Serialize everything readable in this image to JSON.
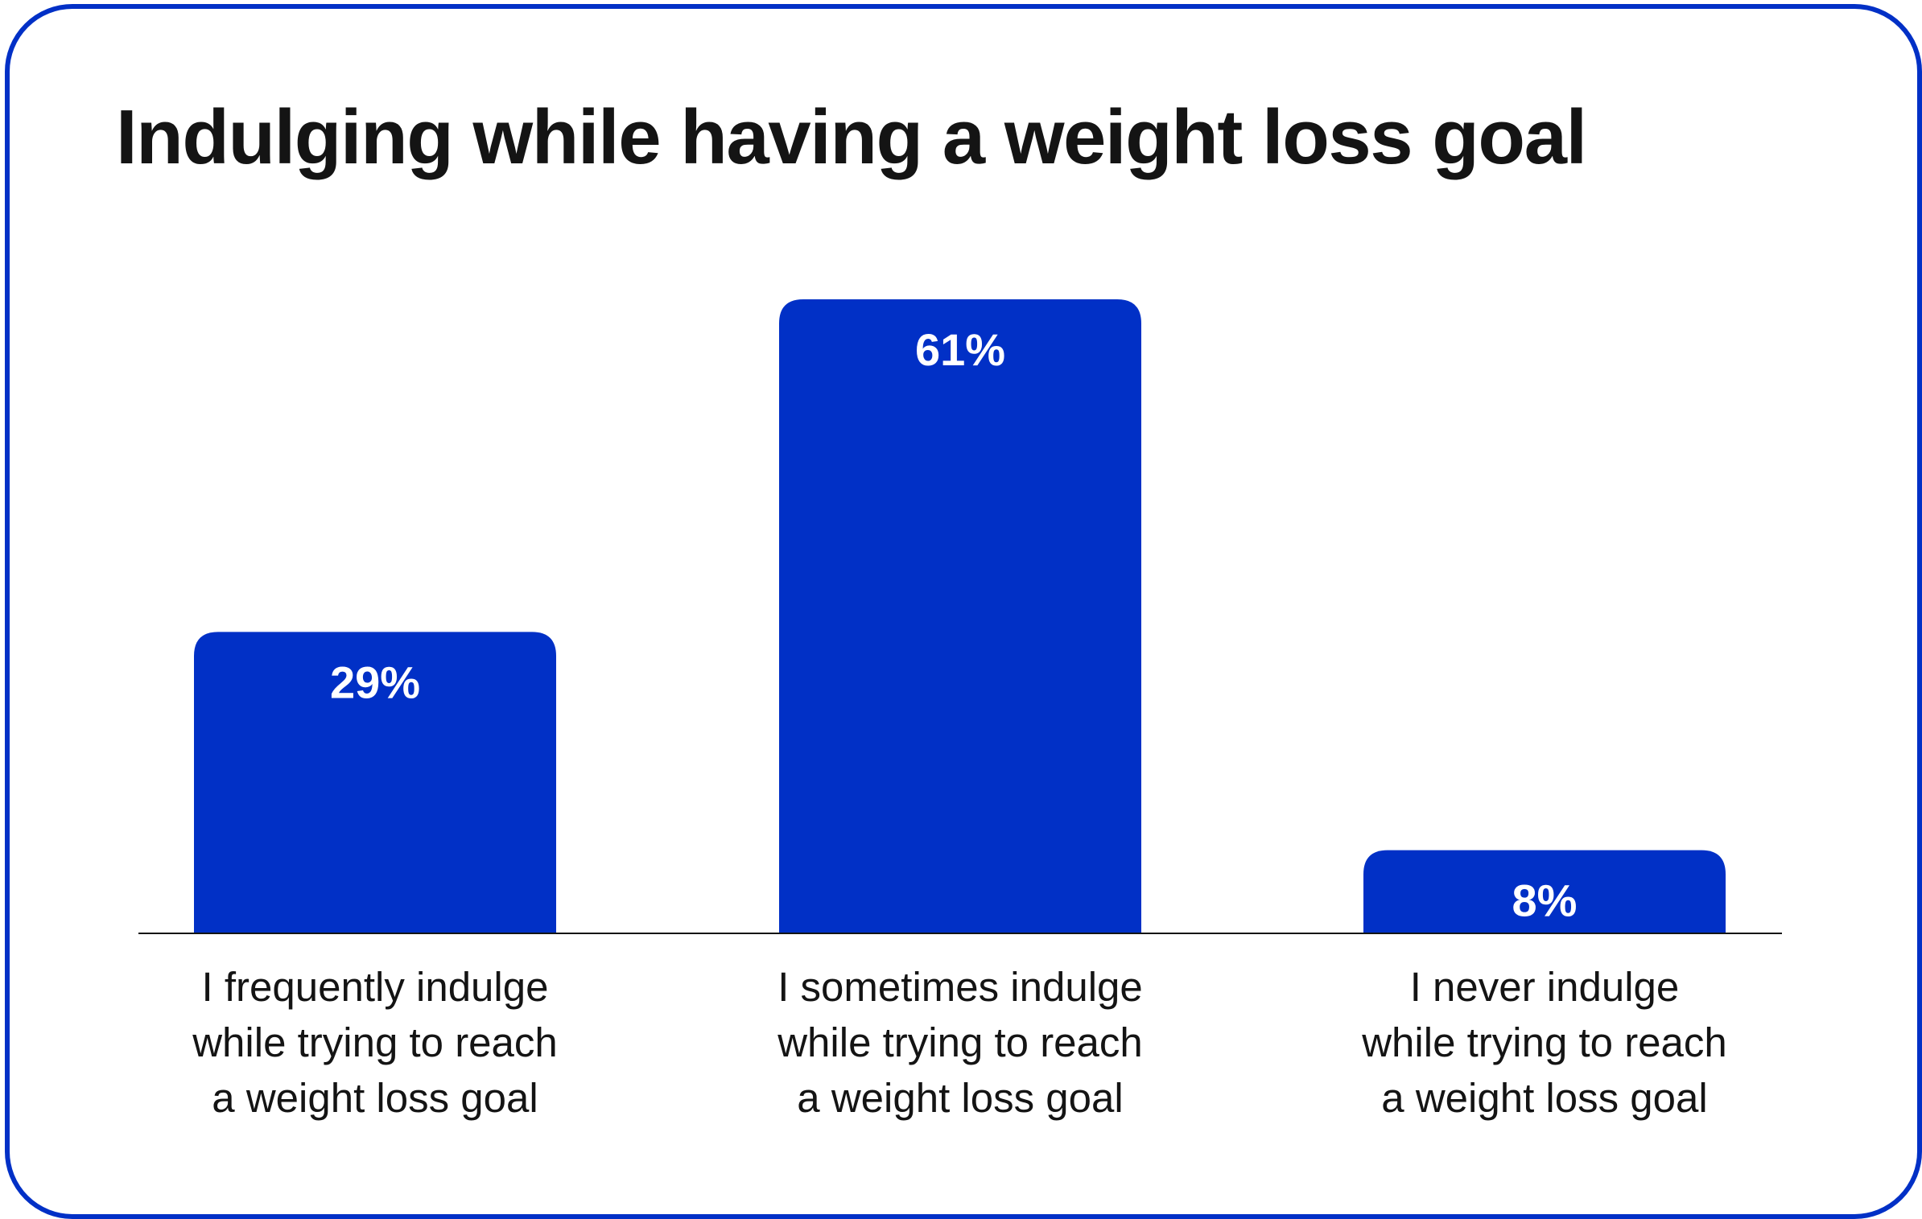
{
  "chart_data": {
    "type": "bar",
    "title": "Indulging while having a weight loss goal",
    "categories": [
      [
        "I frequently indulge",
        "while trying to reach",
        "a weight loss goal"
      ],
      [
        "I sometimes indulge",
        "while trying to reach",
        "a weight loss goal"
      ],
      [
        "I never indulge",
        "while trying to reach",
        "a weight loss goal"
      ]
    ],
    "values": [
      29,
      61,
      8
    ],
    "value_labels": [
      "29%",
      "61%",
      "8%"
    ],
    "ylim": [
      0,
      61
    ],
    "grid": false,
    "legend": "none",
    "colors": {
      "bar": "#0130c6",
      "border": "#0130c6",
      "text": "#141414",
      "axis": "#141414",
      "value_text": "#ffffff"
    }
  }
}
